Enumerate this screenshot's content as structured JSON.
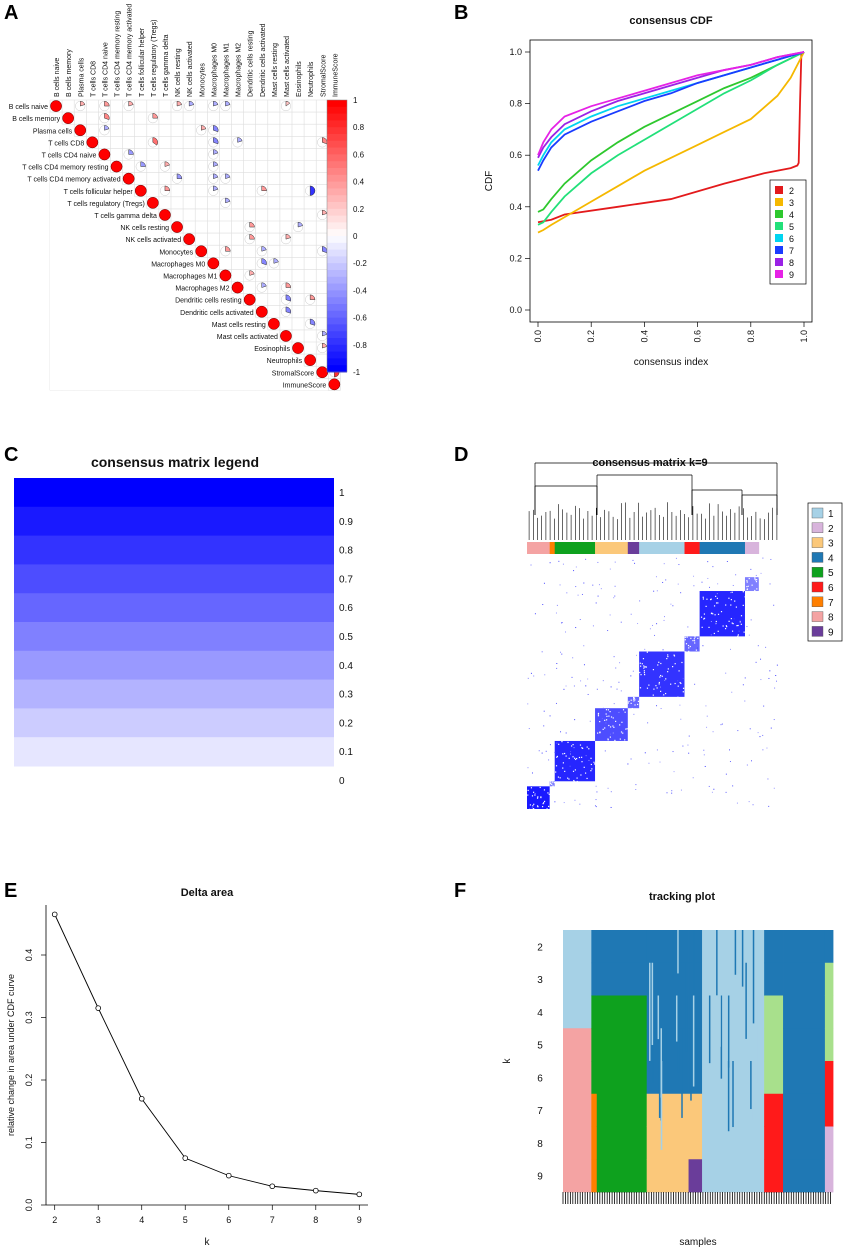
{
  "panels": {
    "A": "A",
    "B": "B",
    "C": "C",
    "D": "D",
    "E": "E",
    "F": "F"
  },
  "colors": {
    "c1": "#a6d1e6",
    "c2": "#d8b4dc",
    "c3": "#fbc87a",
    "c4": "#1f78b4",
    "c5": "#0ea11e",
    "c6": "#ff1a1a",
    "c7": "#ff7f00",
    "c8": "#f4a3a3",
    "c9": "#6a3d9a",
    "c_light_green": "#a8e08c",
    "cdf2": "#e31a1c",
    "cdf3": "#f5b800",
    "cdf4": "#2ec82e",
    "cdf5": "#22e07a",
    "cdf6": "#00d4f0",
    "cdf7": "#1a3cff",
    "cdf8": "#9a22e6",
    "cdf9": "#e622e6",
    "blue": "#0000ff",
    "red": "#ff0000"
  },
  "chart_data": [
    {
      "panel": "A",
      "type": "heatmap",
      "variables": [
        "B cells naive",
        "B cells memory",
        "Plasma cells",
        "T cells CD8",
        "T cells CD4 naive",
        "T cells CD4 memory resting",
        "T cells CD4 memory activated",
        "T cells follicular helper",
        "T cells regulatory (Tregs)",
        "T cells gamma delta",
        "NK cells resting",
        "NK cells activated",
        "Monocytes",
        "Macrophages M0",
        "Macrophages M1",
        "Macrophages M2",
        "Dendritic cells resting",
        "Dendritic cells activated",
        "Mast cells resting",
        "Mast cells activated",
        "Eosinophils",
        "Neutrophils",
        "StromalScore",
        "ImmuneScore"
      ],
      "colorbar_ticks": [
        "1",
        "0.8",
        "0.6",
        "0.4",
        "0.2",
        "0",
        "-0.2",
        "-0.4",
        "-0.6",
        "-0.8",
        "-1"
      ],
      "colorbar_range": [
        -1,
        1
      ],
      "cells": [
        [
          0,
          2,
          0.2
        ],
        [
          0,
          4,
          0.25
        ],
        [
          0,
          6,
          0.2
        ],
        [
          1,
          4,
          0.3
        ],
        [
          0,
          10,
          0.2
        ],
        [
          0,
          11,
          -0.2
        ],
        [
          0,
          13,
          -0.2
        ],
        [
          0,
          14,
          -0.2
        ],
        [
          0,
          19,
          0.15
        ],
        [
          1,
          8,
          0.25
        ],
        [
          2,
          4,
          -0.2
        ],
        [
          2,
          12,
          0.2
        ],
        [
          2,
          13,
          -0.3
        ],
        [
          3,
          13,
          -0.3
        ],
        [
          3,
          8,
          0.35
        ],
        [
          3,
          15,
          -0.2
        ],
        [
          3,
          22,
          0.3
        ],
        [
          4,
          6,
          -0.25
        ],
        [
          4,
          13,
          -0.2
        ],
        [
          5,
          7,
          -0.25
        ],
        [
          5,
          9,
          0.2
        ],
        [
          5,
          13,
          -0.2
        ],
        [
          6,
          10,
          -0.25
        ],
        [
          6,
          13,
          -0.2
        ],
        [
          6,
          14,
          -0.2
        ],
        [
          7,
          9,
          0.25
        ],
        [
          7,
          13,
          -0.2
        ],
        [
          7,
          17,
          0.25
        ],
        [
          7,
          21,
          -0.5
        ],
        [
          8,
          14,
          -0.2
        ],
        [
          9,
          22,
          0.2
        ],
        [
          10,
          16,
          0.25
        ],
        [
          10,
          20,
          -0.2
        ],
        [
          11,
          16,
          0.25
        ],
        [
          11,
          19,
          0.2
        ],
        [
          12,
          14,
          0.25
        ],
        [
          12,
          17,
          -0.2
        ],
        [
          12,
          22,
          -0.3
        ],
        [
          13,
          17,
          -0.3
        ],
        [
          13,
          18,
          -0.2
        ],
        [
          14,
          16,
          0.2
        ],
        [
          15,
          17,
          -0.2
        ],
        [
          15,
          19,
          0.25
        ],
        [
          16,
          19,
          -0.3
        ],
        [
          16,
          21,
          0.25
        ],
        [
          17,
          19,
          -0.3
        ],
        [
          18,
          21,
          -0.3
        ],
        [
          19,
          22,
          -0.2
        ],
        [
          20,
          22,
          0.2
        ],
        [
          22,
          23,
          0.5
        ]
      ]
    },
    {
      "panel": "B",
      "type": "line",
      "title": "consensus CDF",
      "xlabel": "consensus index",
      "ylabel": "CDF",
      "xlim": [
        0,
        1
      ],
      "ylim": [
        0,
        1
      ],
      "xticks": [
        "0.0",
        "0.2",
        "0.4",
        "0.6",
        "0.8",
        "1.0"
      ],
      "yticks": [
        "0.0",
        "0.2",
        "0.4",
        "0.6",
        "0.8",
        "1.0"
      ],
      "legend_position": "right",
      "series": [
        {
          "name": "2",
          "x": [
            0,
            0.05,
            0.1,
            0.3,
            0.5,
            0.7,
            0.85,
            0.95,
            0.975,
            0.98,
            0.985,
            0.99,
            1
          ],
          "y": [
            0.34,
            0.35,
            0.37,
            0.4,
            0.43,
            0.49,
            0.53,
            0.55,
            0.56,
            0.57,
            0.8,
            0.99,
            1
          ]
        },
        {
          "name": "3",
          "x": [
            0,
            0.02,
            0.05,
            0.1,
            0.2,
            0.3,
            0.4,
            0.5,
            0.6,
            0.7,
            0.8,
            0.9,
            0.95,
            1
          ],
          "y": [
            0.3,
            0.31,
            0.33,
            0.36,
            0.42,
            0.48,
            0.54,
            0.59,
            0.64,
            0.69,
            0.74,
            0.83,
            0.9,
            1
          ]
        },
        {
          "name": "4",
          "x": [
            0,
            0.02,
            0.05,
            0.1,
            0.2,
            0.3,
            0.4,
            0.5,
            0.6,
            0.7,
            0.8,
            0.9,
            1
          ],
          "y": [
            0.38,
            0.39,
            0.43,
            0.49,
            0.58,
            0.65,
            0.71,
            0.76,
            0.81,
            0.86,
            0.9,
            0.95,
            1
          ]
        },
        {
          "name": "5",
          "x": [
            0,
            0.02,
            0.05,
            0.1,
            0.2,
            0.3,
            0.4,
            0.5,
            0.6,
            0.7,
            0.8,
            0.9,
            1
          ],
          "y": [
            0.33,
            0.34,
            0.38,
            0.44,
            0.53,
            0.6,
            0.66,
            0.72,
            0.78,
            0.84,
            0.89,
            0.95,
            1
          ]
        },
        {
          "name": "6",
          "x": [
            0,
            0.02,
            0.05,
            0.1,
            0.2,
            0.3,
            0.4,
            0.5,
            0.6,
            0.7,
            0.8,
            0.9,
            1
          ],
          "y": [
            0.56,
            0.6,
            0.65,
            0.7,
            0.75,
            0.79,
            0.82,
            0.85,
            0.88,
            0.91,
            0.94,
            0.97,
            1
          ]
        },
        {
          "name": "7",
          "x": [
            0,
            0.02,
            0.05,
            0.1,
            0.2,
            0.3,
            0.4,
            0.5,
            0.6,
            0.7,
            0.8,
            0.9,
            1
          ],
          "y": [
            0.54,
            0.58,
            0.63,
            0.68,
            0.73,
            0.77,
            0.81,
            0.84,
            0.88,
            0.91,
            0.94,
            0.97,
            1
          ]
        },
        {
          "name": "8",
          "x": [
            0,
            0.02,
            0.05,
            0.1,
            0.2,
            0.3,
            0.4,
            0.5,
            0.6,
            0.7,
            0.8,
            0.9,
            1
          ],
          "y": [
            0.59,
            0.63,
            0.67,
            0.72,
            0.77,
            0.81,
            0.84,
            0.87,
            0.9,
            0.93,
            0.95,
            0.98,
            1
          ]
        },
        {
          "name": "9",
          "x": [
            0,
            0.02,
            0.05,
            0.1,
            0.2,
            0.3,
            0.4,
            0.5,
            0.6,
            0.7,
            0.8,
            0.9,
            1
          ],
          "y": [
            0.6,
            0.65,
            0.7,
            0.75,
            0.79,
            0.82,
            0.85,
            0.88,
            0.91,
            0.93,
            0.95,
            0.98,
            1
          ]
        }
      ]
    },
    {
      "panel": "C",
      "type": "heatmap",
      "title": "consensus matrix legend",
      "levels": [
        "1",
        "0.9",
        "0.8",
        "0.7",
        "0.6",
        "0.5",
        "0.4",
        "0.3",
        "0.2",
        "0.1",
        "0"
      ],
      "values": [
        1,
        0.9,
        0.8,
        0.7,
        0.6,
        0.5,
        0.4,
        0.3,
        0.2,
        0.1
      ]
    },
    {
      "panel": "D",
      "type": "heatmap",
      "title": "consensus matrix k=9",
      "legend": [
        "1",
        "2",
        "3",
        "4",
        "5",
        "6",
        "7",
        "8",
        "9"
      ],
      "cluster_bar": [
        {
          "cluster": 8,
          "width": 0.09
        },
        {
          "cluster": 7,
          "width": 0.02
        },
        {
          "cluster": 5,
          "width": 0.16
        },
        {
          "cluster": 3,
          "width": 0.13
        },
        {
          "cluster": 9,
          "width": 0.045
        },
        {
          "cluster": 1,
          "width": 0.18
        },
        {
          "cluster": 6,
          "width": 0.06
        },
        {
          "cluster": 4,
          "width": 0.18
        },
        {
          "cluster": 2,
          "width": 0.055
        }
      ]
    },
    {
      "panel": "E",
      "type": "line",
      "title": "Delta area",
      "xlabel": "k",
      "ylabel": "relative change in area under CDF curve",
      "x": [
        2,
        3,
        4,
        5,
        6,
        7,
        8,
        9
      ],
      "y": [
        0.465,
        0.315,
        0.17,
        0.075,
        0.047,
        0.03,
        0.023,
        0.017
      ],
      "xlim": [
        1.8,
        9.2
      ],
      "ylim": [
        0,
        0.48
      ],
      "xticks": [
        "2",
        "3",
        "4",
        "5",
        "6",
        "7",
        "8",
        "9"
      ],
      "yticks": [
        "0.0",
        "0.1",
        "0.2",
        "0.3",
        "0.4"
      ]
    },
    {
      "panel": "F",
      "type": "heatmap",
      "title": "tracking plot",
      "xlabel": "samples",
      "ylabel": "k",
      "rows": [
        "2",
        "3",
        "4",
        "5",
        "6",
        "7",
        "8",
        "9"
      ]
    }
  ]
}
